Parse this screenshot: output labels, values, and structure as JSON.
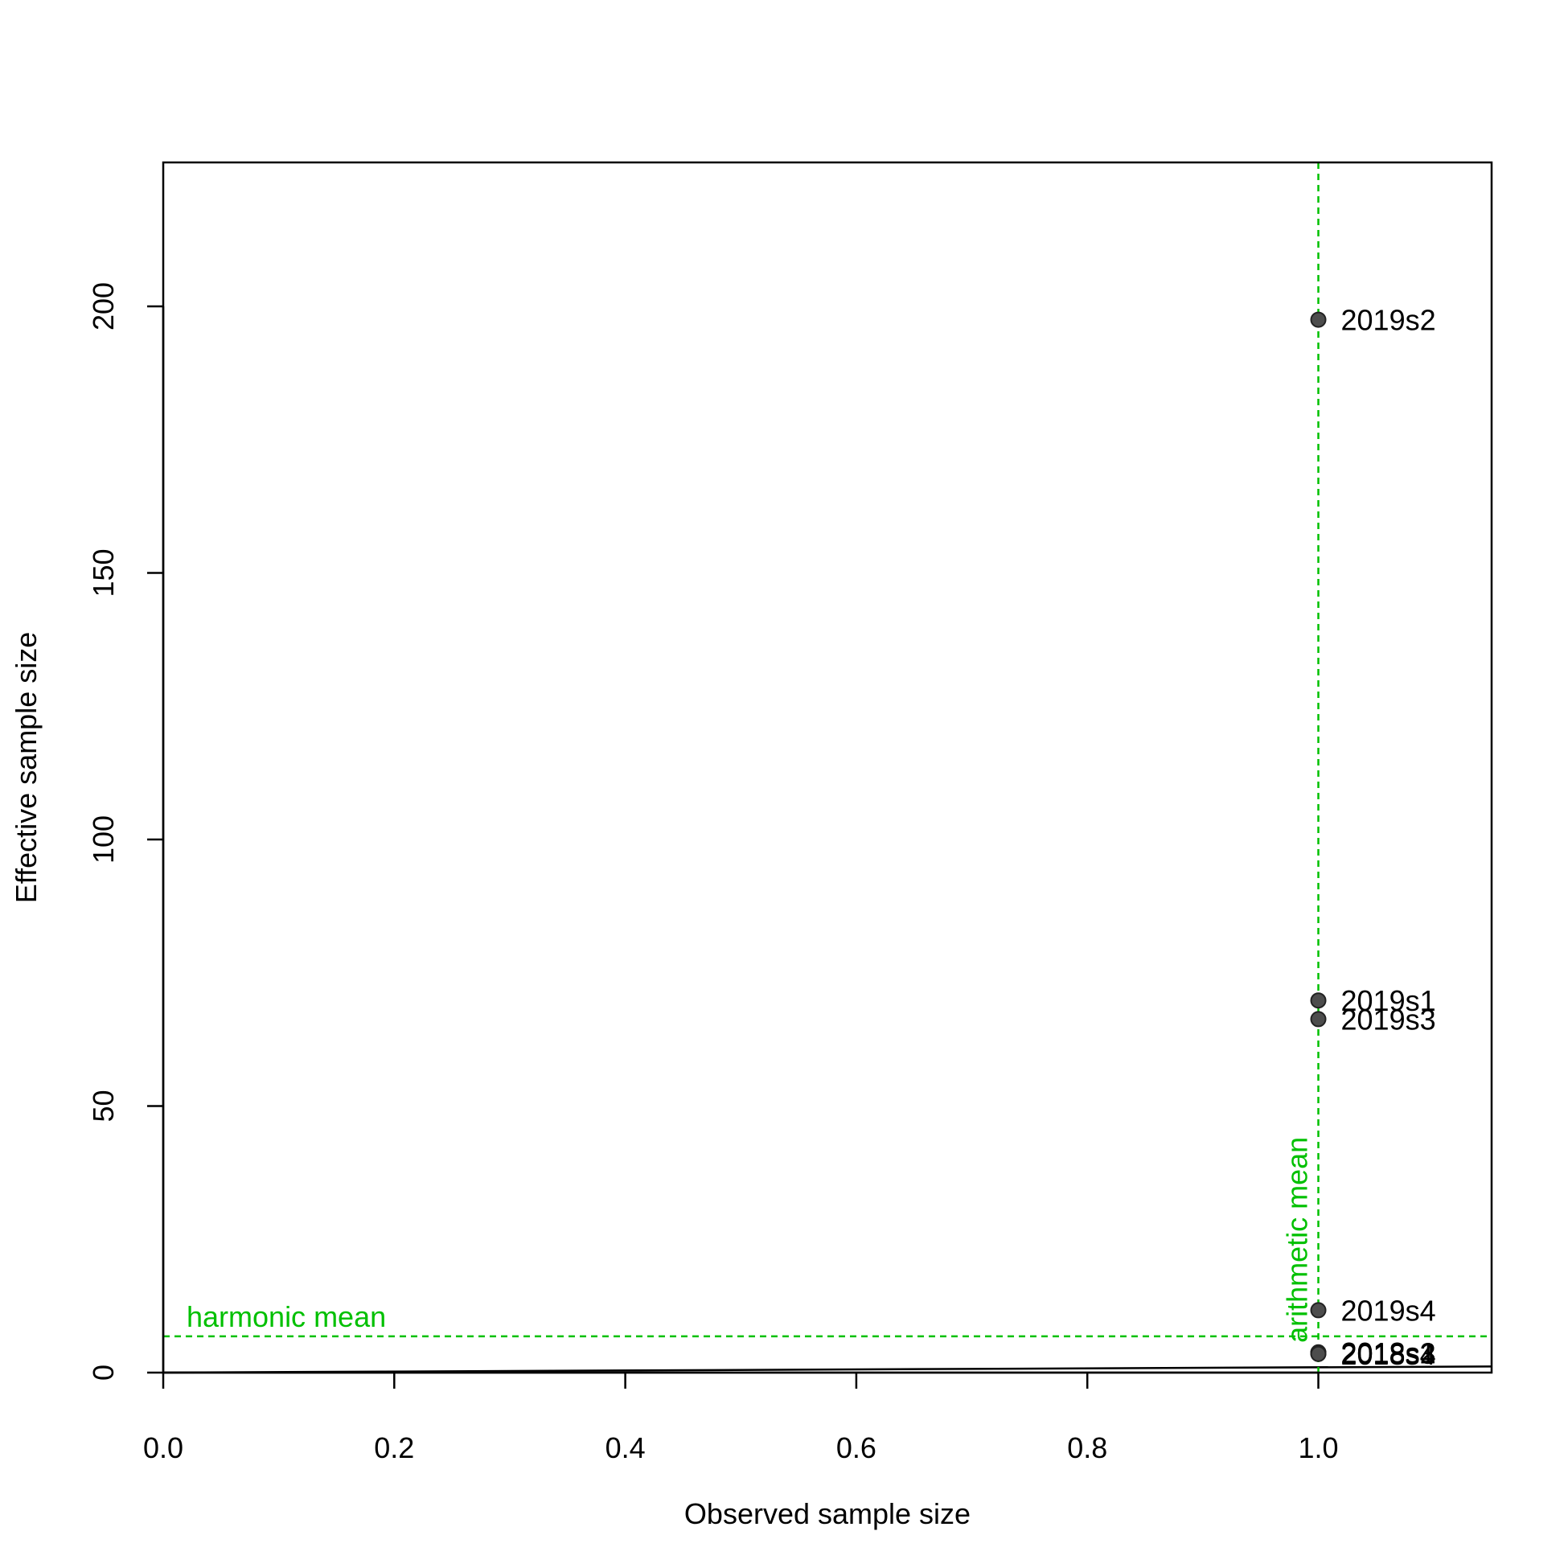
{
  "chart_data": {
    "type": "scatter",
    "xlabel": "Observed sample size",
    "ylabel": "Effective sample size",
    "xlim": [
      0,
      1.15
    ],
    "ylim": [
      0,
      227
    ],
    "x_ticks": [
      0.0,
      0.2,
      0.4,
      0.6,
      0.8,
      1.0
    ],
    "x_tick_labels": [
      "0.0",
      "0.2",
      "0.4",
      "0.6",
      "0.8",
      "1.0"
    ],
    "y_ticks": [
      0,
      50,
      100,
      150,
      200
    ],
    "y_tick_labels": [
      "0",
      "50",
      "100",
      "150",
      "200"
    ],
    "grid": false,
    "points": [
      {
        "label": "2019s2",
        "x": 1.0,
        "y": 197.5
      },
      {
        "label": "2019s1",
        "x": 1.0,
        "y": 69.8
      },
      {
        "label": "2019s3",
        "x": 1.0,
        "y": 66.3
      },
      {
        "label": "2019s4",
        "x": 1.0,
        "y": 11.7
      },
      {
        "label": "2018s1",
        "x": 1.0,
        "y": 3.8
      },
      {
        "label": "2018s2",
        "x": 1.0,
        "y": 3.7
      },
      {
        "label": "2018s3",
        "x": 1.0,
        "y": 3.6
      },
      {
        "label": "2018s4",
        "x": 1.0,
        "y": 3.5
      }
    ],
    "reference_lines": [
      {
        "label": "harmonic mean",
        "orientation": "horizontal",
        "value": 6.8,
        "color": "#00c000",
        "style": "dashed"
      },
      {
        "label": "arithmetic mean",
        "orientation": "vertical",
        "value": 1.0,
        "color": "#00c000",
        "style": "dashed"
      }
    ],
    "identity_line": {
      "from": [
        0,
        0
      ],
      "to": [
        1.15,
        1.15
      ],
      "color": "#000000"
    },
    "point_color": "#4d4d4d",
    "axis_color": "#000000"
  }
}
